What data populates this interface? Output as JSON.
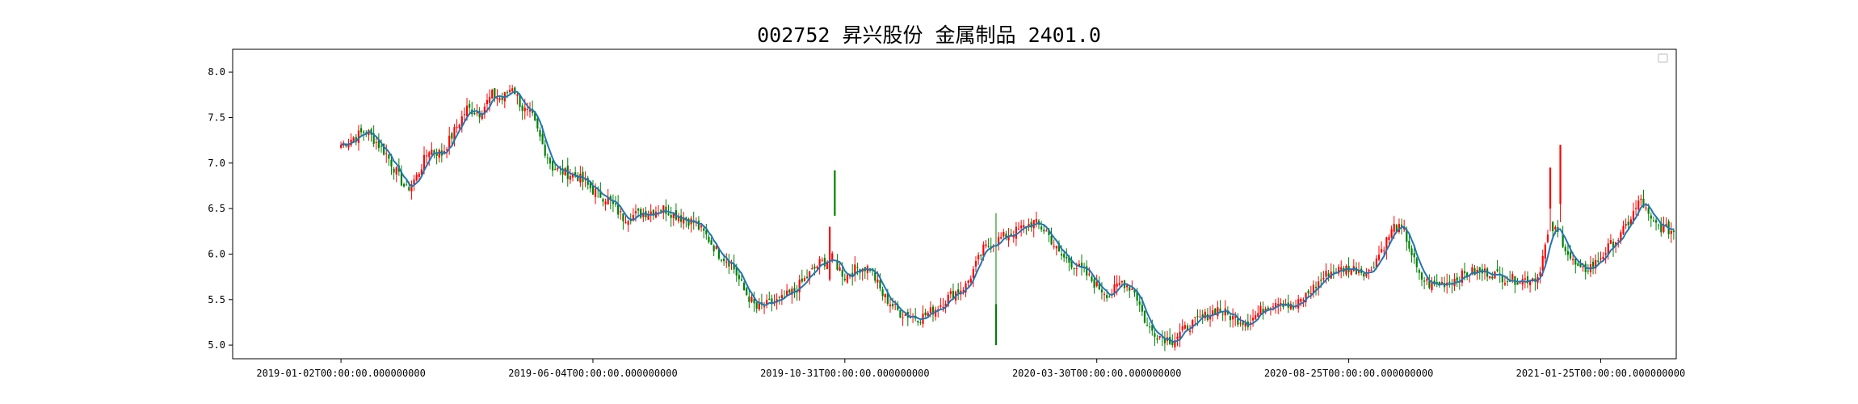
{
  "chart_data": {
    "type": "candlestick",
    "title": "002752 昇兴股份 金属制品 2401.0",
    "xlabel": "",
    "ylabel": "",
    "ylim": [
      4.85,
      8.25
    ],
    "y_ticks": [
      5.0,
      5.5,
      6.0,
      6.5,
      7.0,
      7.5,
      8.0
    ],
    "y_tick_labels": [
      "5.0",
      "5.5",
      "6.0",
      "6.5",
      "7.0",
      "7.5",
      "8.0"
    ],
    "x_tick_labels": [
      "2019-01-02T00:00:00.000000000",
      "2019-06-04T00:00:00.000000000",
      "2019-10-31T00:00:00.000000000",
      "2020-03-30T00:00:00.000000000",
      "2020-08-25T00:00:00.000000000",
      "2021-01-25T00:00:00.000000000"
    ],
    "x_tick_index": [
      0,
      100,
      200,
      300,
      400,
      500
    ],
    "x_range": [
      -43,
      530
    ],
    "up_color": "#ff0000",
    "down_color": "#008000",
    "ma_color": "#1f77b4",
    "grid": false,
    "legend": "top-right (empty)",
    "close_anchors": [
      [
        0,
        7.2
      ],
      [
        10,
        7.36
      ],
      [
        18,
        7.1
      ],
      [
        22,
        6.9
      ],
      [
        26,
        6.7
      ],
      [
        30,
        6.85
      ],
      [
        35,
        7.15
      ],
      [
        40,
        7.1
      ],
      [
        45,
        7.35
      ],
      [
        50,
        7.6
      ],
      [
        55,
        7.55
      ],
      [
        60,
        7.75
      ],
      [
        64,
        7.7
      ],
      [
        68,
        7.85
      ],
      [
        72,
        7.6
      ],
      [
        76,
        7.5
      ],
      [
        80,
        7.2
      ],
      [
        84,
        6.95
      ],
      [
        88,
        6.9
      ],
      [
        94,
        6.85
      ],
      [
        100,
        6.7
      ],
      [
        106,
        6.6
      ],
      [
        112,
        6.4
      ],
      [
        120,
        6.45
      ],
      [
        128,
        6.5
      ],
      [
        135,
        6.4
      ],
      [
        140,
        6.35
      ],
      [
        145,
        6.2
      ],
      [
        150,
        6.0
      ],
      [
        155,
        5.9
      ],
      [
        160,
        5.6
      ],
      [
        165,
        5.4
      ],
      [
        170,
        5.45
      ],
      [
        175,
        5.5
      ],
      [
        180,
        5.6
      ],
      [
        185,
        5.75
      ],
      [
        190,
        5.9
      ],
      [
        195,
        5.95
      ],
      [
        200,
        5.75
      ],
      [
        205,
        5.85
      ],
      [
        210,
        5.85
      ],
      [
        215,
        5.55
      ],
      [
        222,
        5.35
      ],
      [
        230,
        5.3
      ],
      [
        236,
        5.4
      ],
      [
        242,
        5.55
      ],
      [
        248,
        5.65
      ],
      [
        255,
        6.05
      ],
      [
        260,
        6.15
      ],
      [
        268,
        6.25
      ],
      [
        275,
        6.35
      ],
      [
        280,
        6.25
      ],
      [
        285,
        6.0
      ],
      [
        290,
        5.9
      ],
      [
        295,
        5.8
      ],
      [
        300,
        5.65
      ],
      [
        305,
        5.55
      ],
      [
        310,
        5.7
      ],
      [
        315,
        5.6
      ],
      [
        320,
        5.2
      ],
      [
        325,
        5.1
      ],
      [
        330,
        5.05
      ],
      [
        336,
        5.2
      ],
      [
        342,
        5.3
      ],
      [
        348,
        5.4
      ],
      [
        354,
        5.3
      ],
      [
        360,
        5.25
      ],
      [
        366,
        5.4
      ],
      [
        372,
        5.5
      ],
      [
        378,
        5.4
      ],
      [
        385,
        5.6
      ],
      [
        392,
        5.8
      ],
      [
        400,
        5.85
      ],
      [
        408,
        5.8
      ],
      [
        413,
        6.05
      ],
      [
        418,
        6.3
      ],
      [
        422,
        6.25
      ],
      [
        428,
        5.75
      ],
      [
        433,
        5.65
      ],
      [
        440,
        5.7
      ],
      [
        448,
        5.8
      ],
      [
        456,
        5.8
      ],
      [
        464,
        5.72
      ],
      [
        470,
        5.72
      ],
      [
        475,
        5.75
      ],
      [
        480,
        6.3
      ],
      [
        484,
        6.2
      ],
      [
        488,
        5.95
      ],
      [
        492,
        5.8
      ],
      [
        498,
        5.9
      ],
      [
        504,
        6.1
      ],
      [
        508,
        6.2
      ],
      [
        512,
        6.4
      ],
      [
        516,
        6.6
      ],
      [
        520,
        6.35
      ],
      [
        525,
        6.28
      ],
      [
        529,
        6.25
      ]
    ],
    "spike_bars": [
      [
        194,
        6.3,
        5.7,
        5.72,
        6.3
      ],
      [
        196,
        6.92,
        6.42,
        6.92,
        6.42
      ],
      [
        260,
        6.45,
        5.0,
        5.45,
        5.0
      ],
      [
        480,
        6.95,
        6.25,
        6.5,
        6.95
      ],
      [
        484,
        7.2,
        6.35,
        6.55,
        7.2
      ]
    ],
    "ma_window": 5
  }
}
